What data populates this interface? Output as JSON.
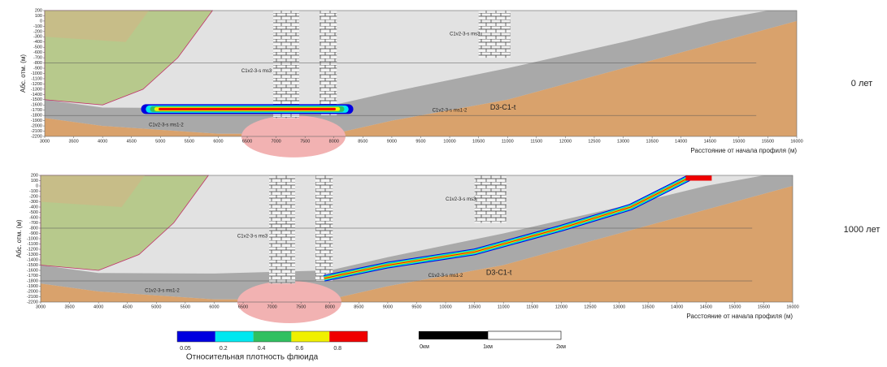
{
  "panels": [
    {
      "time_label": "0 лет",
      "y_label": "Абс. отм. (м)",
      "x_label": "Расстояние от начала профиля (м)",
      "xlim": [
        3000,
        16000
      ],
      "ylim": [
        -2200,
        200
      ],
      "xticks": [
        3000,
        3500,
        4000,
        4500,
        5000,
        5500,
        6000,
        6500,
        7000,
        7500,
        8000,
        8500,
        9000,
        9500,
        10000,
        10500,
        11000,
        11500,
        12000,
        12500,
        13000,
        13500,
        14000,
        14500,
        15000,
        15500,
        16000
      ],
      "yticks": [
        200,
        100,
        0,
        -100,
        -200,
        -300,
        -400,
        -500,
        -600,
        -700,
        -800,
        -900,
        -1000,
        -1100,
        -1200,
        -1300,
        -1400,
        -1500,
        -1600,
        -1700,
        -1800,
        -1900,
        -2000,
        -2100,
        -2200
      ],
      "layer_labels": [
        "C1v2-3-s ms3",
        "C1v2-3-s ms3",
        "C1v2-3-s ms1-2",
        "C1v2-3-s ms1-2",
        "D3-C1-t"
      ]
    },
    {
      "time_label": "1000 лет",
      "y_label": "Абс. отм. (м)",
      "x_label": "Расстояние от начала профиля (м)",
      "xlim": [
        3000,
        16000
      ],
      "ylim": [
        -2200,
        200
      ],
      "xticks": [
        3000,
        3500,
        4000,
        4500,
        5000,
        5500,
        6000,
        6500,
        7000,
        7500,
        8000,
        8500,
        9000,
        9500,
        10000,
        10500,
        11000,
        11500,
        12000,
        12500,
        13000,
        13500,
        14000,
        14500,
        15000,
        15500,
        16000
      ],
      "yticks": [
        200,
        100,
        0,
        -100,
        -200,
        -300,
        -400,
        -500,
        -600,
        -700,
        -800,
        -900,
        -1000,
        -1100,
        -1200,
        -1300,
        -1400,
        -1500,
        -1600,
        -1700,
        -1800,
        -1900,
        -2000,
        -2100,
        -2200
      ],
      "layer_labels": [
        "C1v2-3-s ms3",
        "C1v2-3-s ms3",
        "C1v2-3-s ms1-2",
        "C1v2-3-s ms1-2",
        "D3-C1-t"
      ]
    }
  ],
  "colorbar": {
    "title": "Относительная плотность флюида",
    "ticks": [
      0.05,
      0.2,
      0.4,
      0.6,
      0.8
    ],
    "colors": [
      "#0000e0",
      "#00e8f0",
      "#30c060",
      "#f0f000",
      "#f00000"
    ]
  },
  "scale_bar": {
    "labels": [
      "0км",
      "1км",
      "2км"
    ]
  }
}
